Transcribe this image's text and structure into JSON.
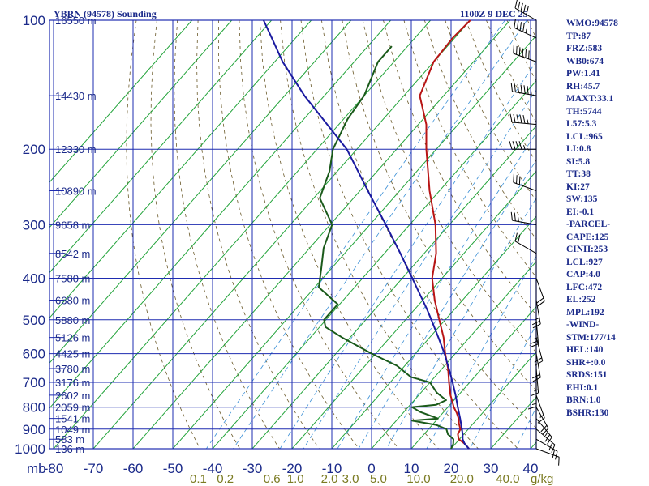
{
  "header": {
    "title": "YBRN (94578) Sounding",
    "datetime": "1100Z  9 DEC 25"
  },
  "chart_data": {
    "type": "line",
    "title": "YBRN (94578) Sounding",
    "pressure_axis_label": "mb",
    "pressure_ticks": [
      100,
      200,
      300,
      400,
      500,
      600,
      700,
      800,
      900,
      1000
    ],
    "temperature_ticks": [
      -80,
      -70,
      -60,
      -50,
      -40,
      -30,
      -20,
      -10,
      0,
      10,
      20,
      30,
      40
    ],
    "height_labels": [
      {
        "p": 100,
        "label": "16550 m"
      },
      {
        "p": 150,
        "label": "14430 m"
      },
      {
        "p": 200,
        "label": "12330 m"
      },
      {
        "p": 250,
        "label": "10890 m"
      },
      {
        "p": 300,
        "label": "9658 m"
      },
      {
        "p": 350,
        "label": "8542 m"
      },
      {
        "p": 400,
        "label": "7580 m"
      },
      {
        "p": 450,
        "label": "6680 m"
      },
      {
        "p": 500,
        "label": "5880 m"
      },
      {
        "p": 550,
        "label": "5126 m"
      },
      {
        "p": 600,
        "label": "4425 m"
      },
      {
        "p": 650,
        "label": "3780 m"
      },
      {
        "p": 700,
        "label": "3176 m"
      },
      {
        "p": 750,
        "label": "2602 m"
      },
      {
        "p": 800,
        "label": "2059 m"
      },
      {
        "p": 850,
        "label": "1541 m"
      },
      {
        "p": 900,
        "label": "1049 m"
      },
      {
        "p": 950,
        "label": "583 m"
      },
      {
        "p": 1000,
        "label": "136 m"
      }
    ],
    "mixing_ratio_labels": [
      "0.1",
      "0.2",
      "0.6",
      "1.0",
      "2.0",
      "3.0",
      "5.0",
      "10.0",
      "20.0",
      "40.0"
    ],
    "mixing_ratio_unit": "g/kg",
    "series": [
      {
        "name": "temperature",
        "color": "#b81414",
        "points": [
          [
            1000,
            24.5
          ],
          [
            975,
            22.5
          ],
          [
            950,
            19.8
          ],
          [
            925,
            18.5
          ],
          [
            900,
            18.0
          ],
          [
            875,
            16.5
          ],
          [
            850,
            15.2
          ],
          [
            825,
            13.5
          ],
          [
            800,
            11.5
          ],
          [
            775,
            9.8
          ],
          [
            750,
            8.0
          ],
          [
            700,
            4.8
          ],
          [
            650,
            1.5
          ],
          [
            600,
            -2.5
          ],
          [
            550,
            -6.5
          ],
          [
            500,
            -11.5
          ],
          [
            450,
            -17.0
          ],
          [
            400,
            -22.5
          ],
          [
            350,
            -27.0
          ],
          [
            300,
            -33.5
          ],
          [
            250,
            -42.5
          ],
          [
            200,
            -52.5
          ],
          [
            175,
            -58.0
          ],
          [
            150,
            -66.0
          ],
          [
            125,
            -70.0
          ],
          [
            110,
            -70.5
          ],
          [
            100,
            -70.0
          ]
        ]
      },
      {
        "name": "dewpoint",
        "color": "#1a5a1a",
        "points": [
          [
            1000,
            20.0
          ],
          [
            975,
            19.5
          ],
          [
            950,
            18.5
          ],
          [
            925,
            16.0
          ],
          [
            900,
            14.5
          ],
          [
            880,
            11.0
          ],
          [
            860,
            4.0
          ],
          [
            850,
            10.0
          ],
          [
            820,
            4.0
          ],
          [
            800,
            1.0
          ],
          [
            790,
            6.5
          ],
          [
            770,
            8.0
          ],
          [
            740,
            4.0
          ],
          [
            700,
            0.0
          ],
          [
            680,
            -6.0
          ],
          [
            640,
            -12.0
          ],
          [
            600,
            -21.0
          ],
          [
            550,
            -32.0
          ],
          [
            520,
            -38.5
          ],
          [
            500,
            -40.5
          ],
          [
            460,
            -40.5
          ],
          [
            420,
            -49.0
          ],
          [
            380,
            -52.5
          ],
          [
            340,
            -56.5
          ],
          [
            300,
            -59.5
          ],
          [
            260,
            -68.5
          ],
          [
            225,
            -72.0
          ],
          [
            200,
            -76.0
          ],
          [
            170,
            -79.0
          ],
          [
            150,
            -80.0
          ],
          [
            125,
            -84.0
          ],
          [
            115,
            -84.0
          ]
        ]
      },
      {
        "name": "parcel",
        "color": "#1a1aa0",
        "points": [
          [
            1000,
            24.5
          ],
          [
            975,
            22.4
          ],
          [
            950,
            20.8
          ],
          [
            927,
            19.8
          ],
          [
            900,
            18.4
          ],
          [
            850,
            15.6
          ],
          [
            800,
            12.5
          ],
          [
            750,
            9.3
          ],
          [
            700,
            5.7
          ],
          [
            650,
            1.7
          ],
          [
            600,
            -2.7
          ],
          [
            550,
            -7.8
          ],
          [
            500,
            -13.5
          ],
          [
            472,
            -17.0
          ],
          [
            400,
            -27.5
          ],
          [
            350,
            -36.0
          ],
          [
            300,
            -46.0
          ],
          [
            252,
            -57.5
          ],
          [
            200,
            -72.5
          ],
          [
            150,
            -95.0
          ],
          [
            125,
            -108.0
          ],
          [
            110,
            -116.0
          ],
          [
            100,
            -122.0
          ]
        ]
      }
    ],
    "wind_barbs": [
      {
        "p": 100,
        "dir": 300,
        "spd": 50
      },
      {
        "p": 110,
        "dir": 295,
        "spd": 45
      },
      {
        "p": 125,
        "dir": 290,
        "spd": 60
      },
      {
        "p": 150,
        "dir": 280,
        "spd": 65
      },
      {
        "p": 175,
        "dir": 275,
        "spd": 55
      },
      {
        "p": 200,
        "dir": 270,
        "spd": 45
      },
      {
        "p": 250,
        "dir": 290,
        "spd": 30
      },
      {
        "p": 300,
        "dir": 280,
        "spd": 25
      },
      {
        "p": 350,
        "dir": 300,
        "spd": 20
      },
      {
        "p": 400,
        "dir": 160,
        "spd": 20
      },
      {
        "p": 450,
        "dir": 170,
        "spd": 25
      },
      {
        "p": 500,
        "dir": 175,
        "spd": 25
      },
      {
        "p": 550,
        "dir": 165,
        "spd": 20
      },
      {
        "p": 600,
        "dir": 170,
        "spd": 20
      },
      {
        "p": 650,
        "dir": 175,
        "spd": 15
      },
      {
        "p": 700,
        "dir": 180,
        "spd": 15
      },
      {
        "p": 750,
        "dir": 160,
        "spd": 15
      },
      {
        "p": 800,
        "dir": 150,
        "spd": 20
      },
      {
        "p": 850,
        "dir": 140,
        "spd": 25
      },
      {
        "p": 900,
        "dir": 130,
        "spd": 20
      },
      {
        "p": 950,
        "dir": 120,
        "spd": 20
      },
      {
        "p": 1000,
        "dir": 110,
        "spd": 10
      }
    ]
  },
  "indices": [
    "WMO:94578",
    "TP:87",
    "FRZ:583",
    "WB0:674",
    "PW:1.41",
    "RH:45.7",
    "MAXT:33.1",
    "TH:5744",
    "L57:5.3",
    "LCL:965",
    "LI:0.8",
    "SI:5.8",
    "TT:38",
    "KI:27",
    "SW:135",
    "EI:-0.1",
    "-PARCEL-",
    "CAPE:125",
    "CINH:253",
    "LCL:927",
    "CAP:4.0",
    "LFC:472",
    "EL:252",
    "MPL:192",
    "-WIND-",
    "STM:177/14",
    "HEL:140",
    "SHR+:0.0",
    "SRDS:151",
    "EHI:0.1",
    "BRN:1.0",
    "BSHR:130"
  ]
}
